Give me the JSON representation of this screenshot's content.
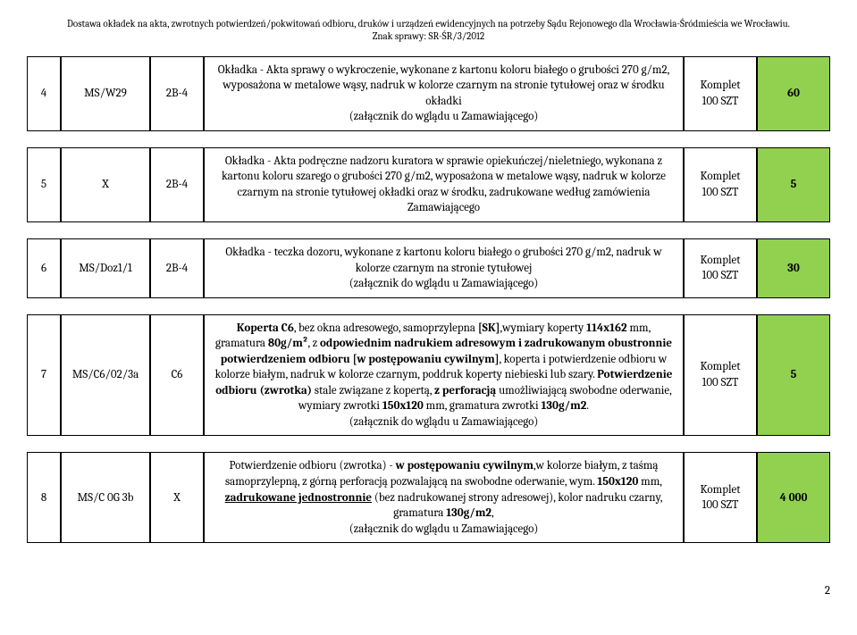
{
  "header": {
    "line1": "Dostawa okładek na akta, zwrotnych potwierdzeń/pokwitowań odbioru, druków i urządzeń ewidencyjnych na potrzeby Sądu Rejonowego dla Wrocławia-Śródmieścia we Wrocławiu.",
    "line2": "Znak sprawy: SR-ŚR/3/2012"
  },
  "rows": [
    {
      "num": "4",
      "code": "MS/W29",
      "format": "2B-4",
      "desc_html": "Okładka - Akta sprawy o wykroczenie, wykonane z kartonu koloru białego o grubości 270 g/m2, wyposażona w metalowe wąsy, nadruk w kolorze czarnym na stronie tytułowej oraz w środku okładki<br>(załącznik do wglądu u Zamawiającego)",
      "unit": "Komplet\n100 SZT",
      "qty": "60",
      "qty_bg": "#92d050"
    },
    {
      "num": "5",
      "code": "X",
      "format": "2B-4",
      "desc_html": "Okładka - Akta podręczne nadzoru kuratora w sprawie opiekuńczej/nieletniego, wykonana z kartonu koloru szarego o grubości 270 g/m2, wyposażona w metalowe wąsy, nadruk w kolorze czarnym na stronie tytułowej okładki oraz w środku, zadrukowane według zamówienia Zamawiającego",
      "unit": "Komplet\n100 SZT",
      "qty": "5",
      "qty_bg": "#92d050"
    },
    {
      "num": "6",
      "code": "MS/Doz1/1",
      "format": "2B-4",
      "desc_html": "Okładka - teczka dozoru, wykonane z kartonu koloru białego o grubości 270 g/m2, nadruk w kolorze czarnym na stronie tytułowej<br>(załącznik do wglądu u Zamawiającego)",
      "unit": "Komplet\n100 SZT",
      "qty": "30",
      "qty_bg": "#92d050"
    },
    {
      "num": "7",
      "code": "MS/C6/02/3a",
      "format": "C6",
      "desc_html": "<span class=\"bold\">Koperta C6</span>, bez okna adresowego, samoprzylepna <span class=\"bold\">[SK]</span>,wymiary koperty <span class=\"bold\">114x162</span> mm, gramatura <span class=\"bold\">80g/m²</span>, z <span class=\"bold\">odpowiednim nadrukiem adresowym i zadrukowanym obustronnie potwierdzeniem odbioru [w postępowaniu cywilnym]</span>, koperta i potwierdzenie odbioru w kolorze białym, nadruk w kolorze czarnym, poddruk koperty niebieski lub szary. <span class=\"bold\">Potwierdzenie odbioru (zwrotka)</span> stale związane z kopertą, <span class=\"bold\">z perforacją</span> umożliwiającą swobodne oderwanie, wymiary zwrotki <span class=\"bold\">150x120</span> mm, gramatura zwrotki <span class=\"bold\">130g/m2</span>.<br>(załącznik do wglądu u Zamawiającego)",
      "unit": "Komplet\n100 SZT",
      "qty": "5",
      "qty_bg": "#92d050"
    },
    {
      "num": "8",
      "code": "MS/C 0G 3b",
      "format": "X",
      "desc_html": "Potwierdzenie odbioru (zwrotka) - <span class=\"bold\">w postępowaniu cywilnym</span>,w kolorze białym, z taśmą samoprzylepną, z górną perforacją pozwalającą na swobodne oderwanie, wym. <span class=\"bold\">150x120</span> mm, <span class=\"bold underline\">zadrukowane jednostronnie</span> (bez nadrukowanej strony adresowej), kolor nadruku czarny, gramatura <span class=\"bold\">130g/m2</span>,<br>(załącznik do wglądu u Zamawiającego)",
      "unit": "Komplet\n100 SZT",
      "qty": "4 000",
      "qty_bg": "#92d050"
    }
  ],
  "page_number": "2"
}
